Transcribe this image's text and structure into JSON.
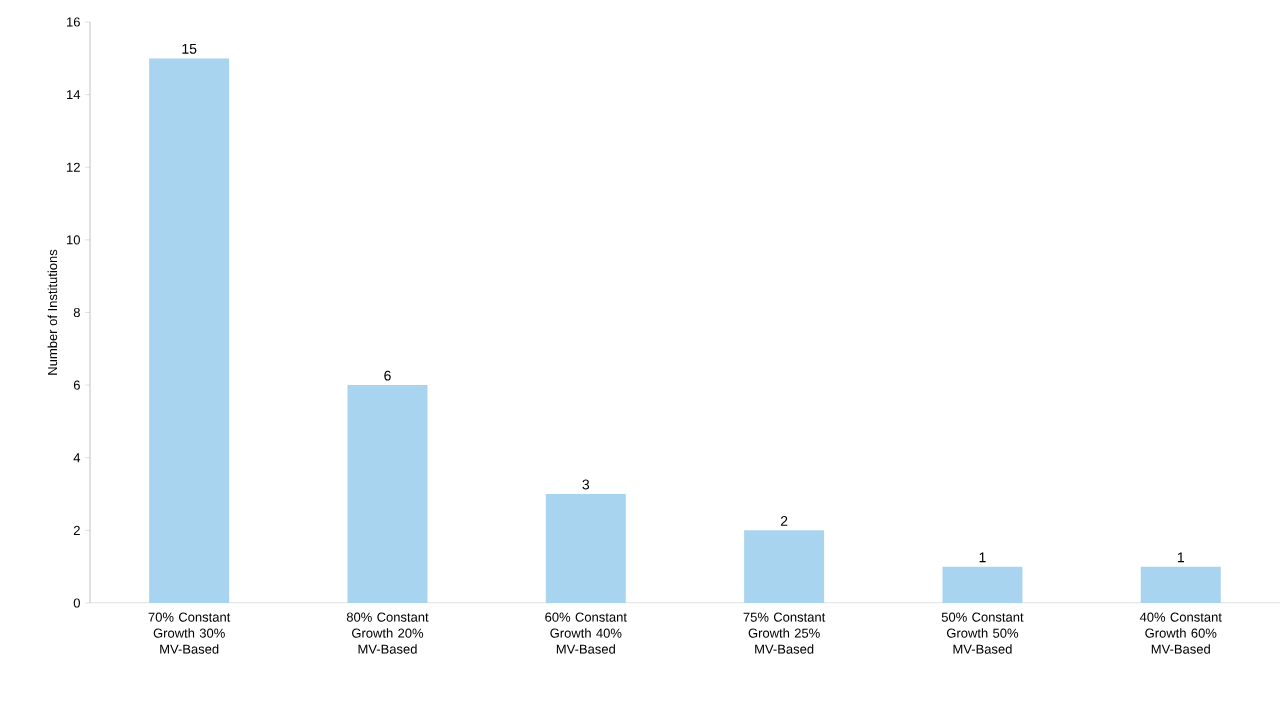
{
  "chart_data": {
    "type": "bar",
    "ylabel": "Number of Institutions",
    "categories": [
      "70% Constant Growth 30% MV-Based",
      "80% Constant Growth 20% MV-Based",
      "60% Constant Growth 40% MV-Based",
      "75% Constant Growth 25% MV-Based",
      "50% Constant Growth 50% MV-Based",
      "40% Constant Growth 60% MV-Based"
    ],
    "values": [
      15,
      6,
      3,
      2,
      1,
      1
    ],
    "color": "#a9d4f0",
    "ylim": [
      0,
      16
    ],
    "yticks": [
      0,
      2,
      4,
      6,
      8,
      10,
      12,
      14,
      16
    ],
    "data_labels": true
  }
}
